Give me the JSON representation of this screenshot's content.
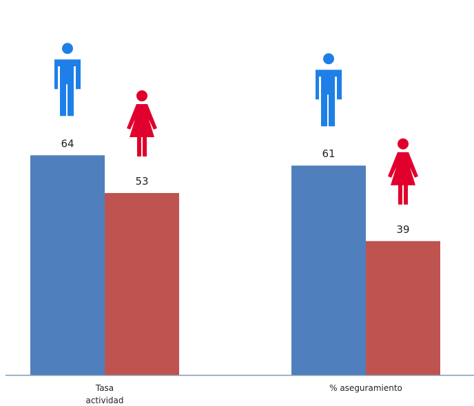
{
  "chart_data": {
    "type": "bar",
    "categories": [
      "Tasa actividad",
      "% aseguramiento"
    ],
    "category_label_lines": [
      [
        "Tasa",
        "actividad"
      ],
      [
        "% aseguramiento"
      ]
    ],
    "series": [
      {
        "values": [
          64,
          61
        ],
        "color": "#4f7fbd",
        "icon": "male-person-icon",
        "icon_color": "#1e7fe8"
      },
      {
        "values": [
          53,
          39
        ],
        "color": "#bf5350",
        "icon": "female-person-icon",
        "icon_color": "#e1002d"
      }
    ],
    "ylim": [
      0,
      100
    ],
    "grid": false,
    "legend": "none",
    "axis_color": "#7f97b4"
  }
}
